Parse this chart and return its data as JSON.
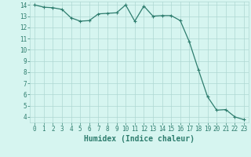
{
  "x": [
    0,
    1,
    2,
    3,
    4,
    5,
    6,
    7,
    8,
    9,
    10,
    11,
    12,
    13,
    14,
    15,
    16,
    17,
    18,
    19,
    20,
    21,
    22,
    23
  ],
  "y": [
    14.0,
    13.8,
    13.75,
    13.6,
    12.85,
    12.55,
    12.6,
    13.2,
    13.25,
    13.3,
    14.0,
    12.55,
    13.9,
    13.0,
    13.05,
    13.05,
    12.6,
    10.7,
    8.2,
    5.8,
    4.6,
    4.65,
    4.0,
    3.75
  ],
  "line_color": "#2e7d6e",
  "marker": "+",
  "marker_size": 3,
  "marker_lw": 0.8,
  "bg_color": "#d6f5f0",
  "grid_color": "#aed8d2",
  "xlabel": "Humidex (Indice chaleur)",
  "ylim": [
    3.5,
    14.3
  ],
  "xlim": [
    -0.5,
    23.5
  ],
  "yticks": [
    4,
    5,
    6,
    7,
    8,
    9,
    10,
    11,
    12,
    13,
    14
  ],
  "xticks": [
    0,
    1,
    2,
    3,
    4,
    5,
    6,
    7,
    8,
    9,
    10,
    11,
    12,
    13,
    14,
    15,
    16,
    17,
    18,
    19,
    20,
    21,
    22,
    23
  ],
  "tick_color": "#2e7d6e",
  "label_color": "#2e7d6e",
  "tick_fontsize": 5.5,
  "xlabel_fontsize": 7.0,
  "line_width": 0.9
}
